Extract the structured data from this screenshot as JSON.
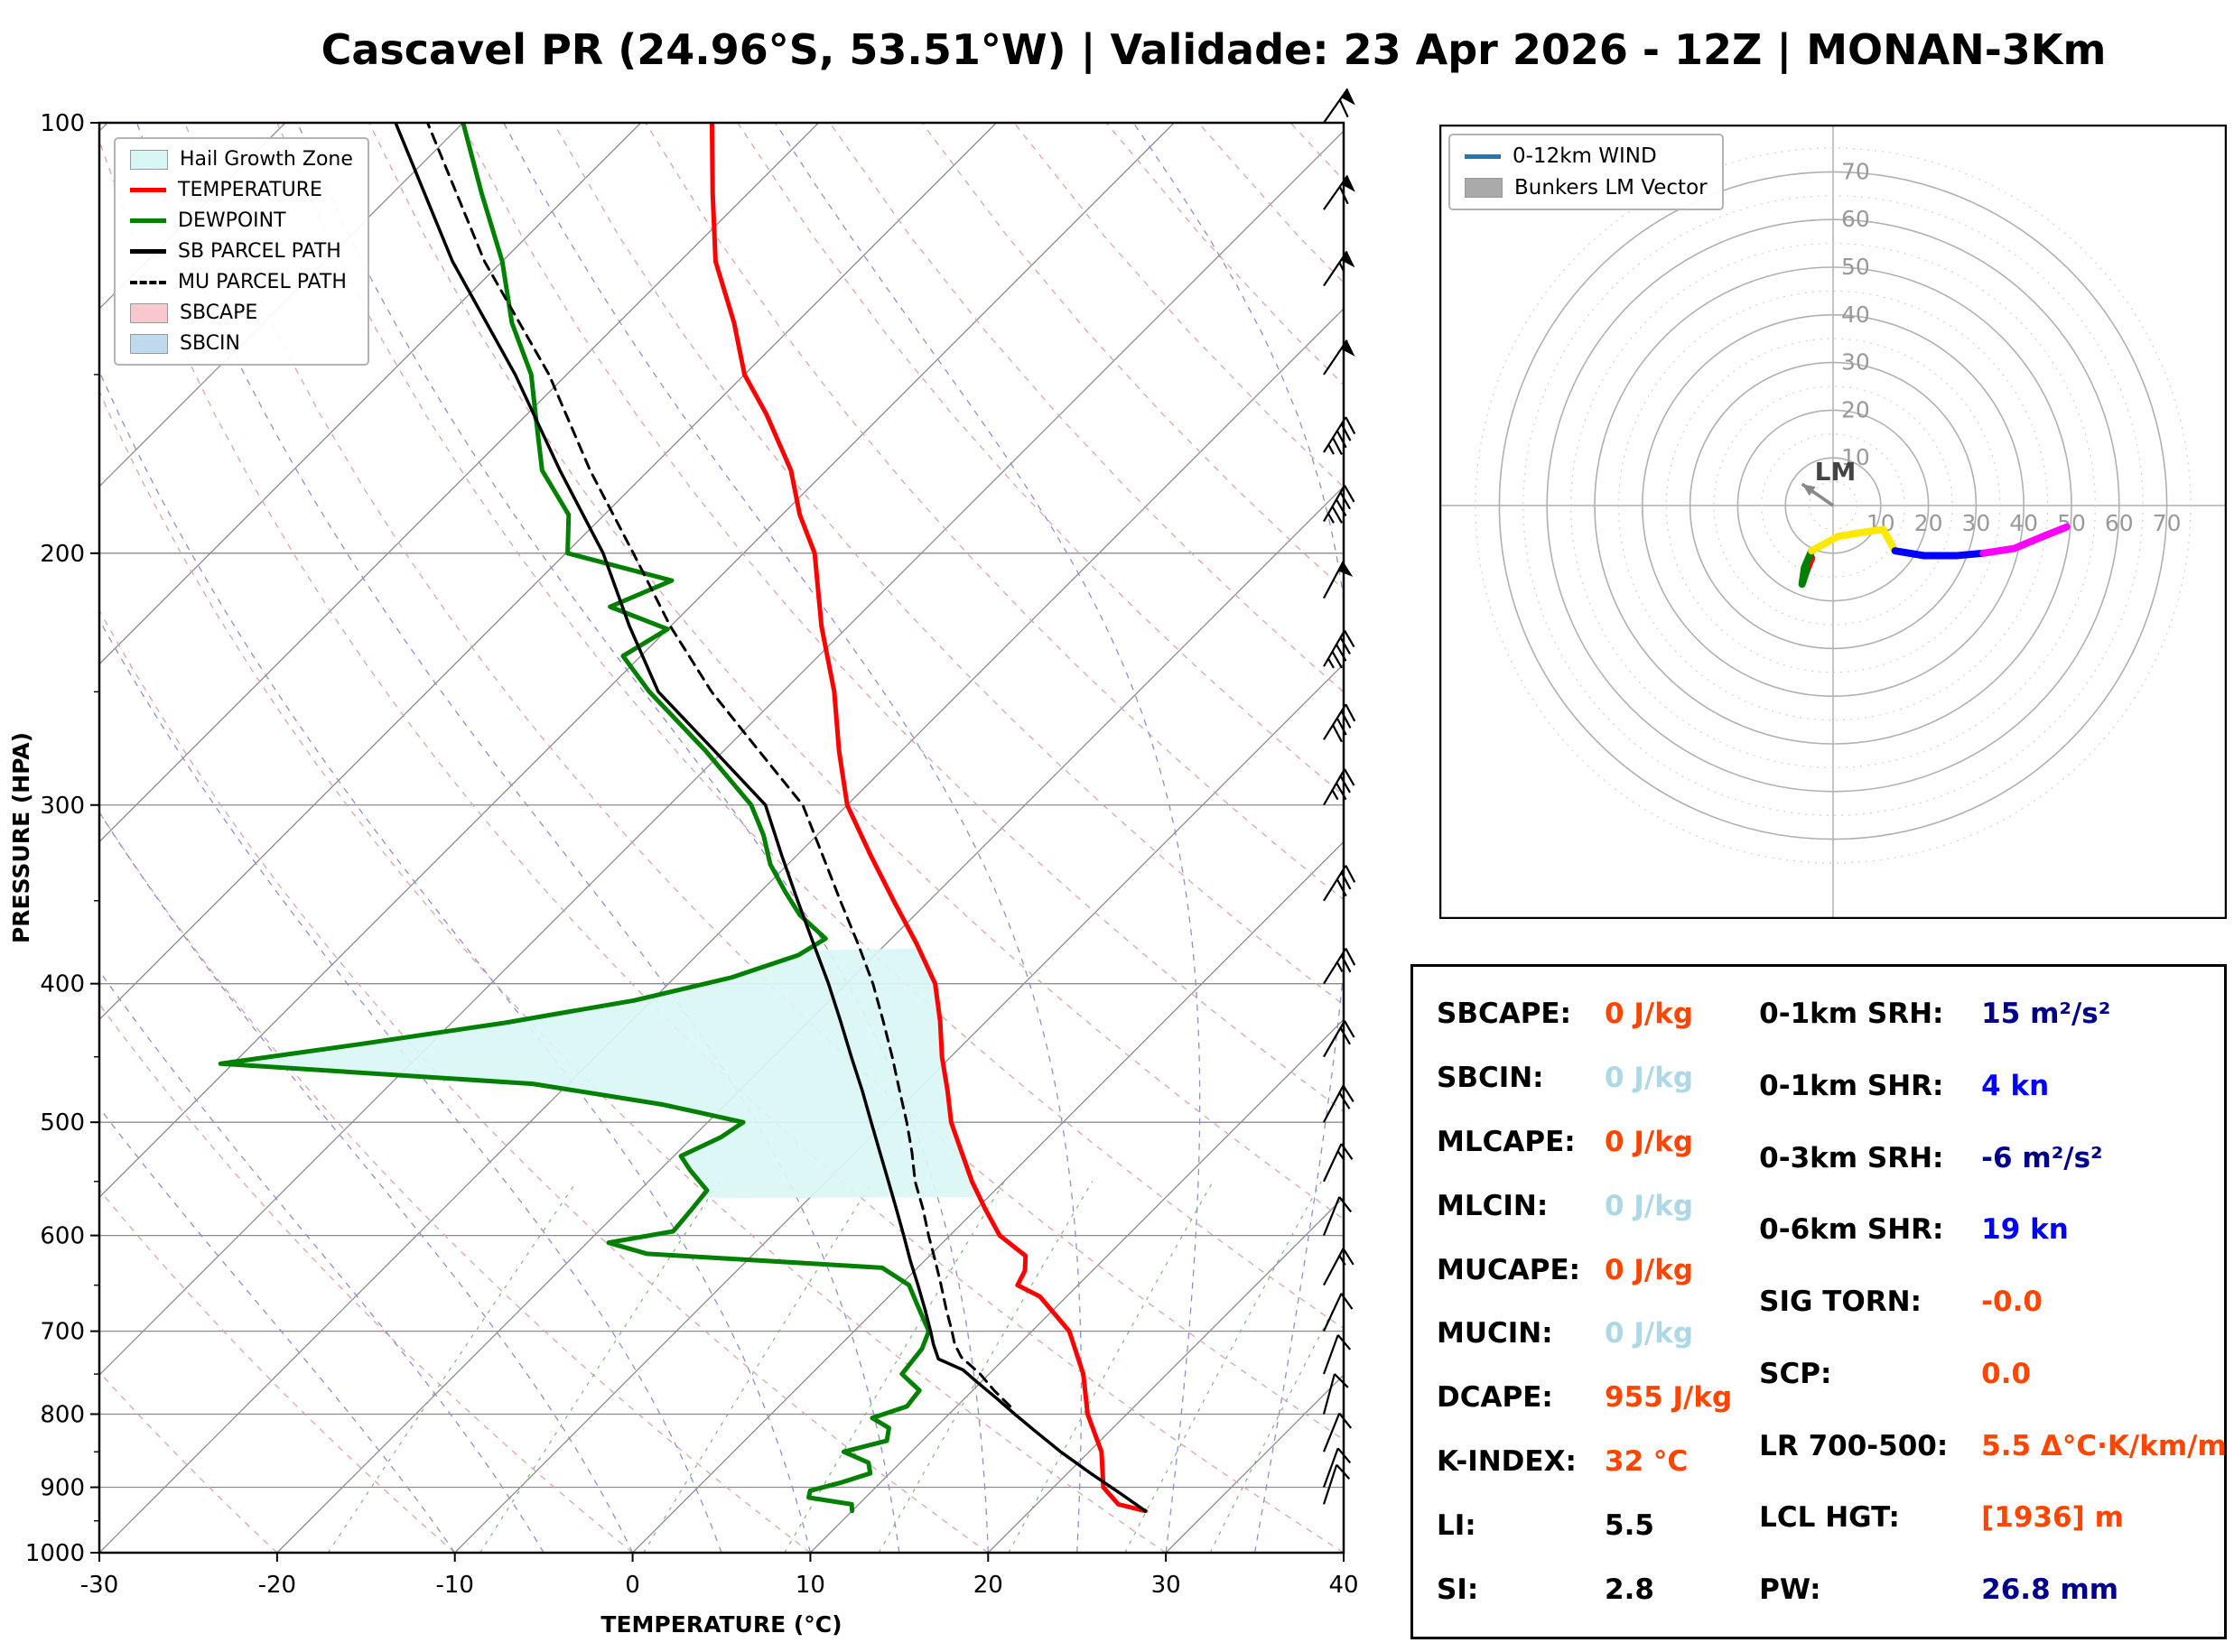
{
  "title": "Cascavel PR (24.96°S, 53.51°W) | Validade: 23 Apr 2026 - 12Z | MONAN-3Km",
  "stats": {
    "left": [
      {
        "label": "SBCAPE:",
        "value": "0 J/kg",
        "color": "#FF4500"
      },
      {
        "label": "SBCIN:",
        "value": "0 J/kg",
        "color": "#ADD8E6"
      },
      {
        "label": "MLCAPE:",
        "value": "0 J/kg",
        "color": "#FF4500"
      },
      {
        "label": "MLCIN:",
        "value": "0 J/kg",
        "color": "#ADD8E6"
      },
      {
        "label": "MUCAPE:",
        "value": "0 J/kg",
        "color": "#FF4500"
      },
      {
        "label": "MUCIN:",
        "value": "0 J/kg",
        "color": "#ADD8E6"
      },
      {
        "label": "DCAPE:",
        "value": "955 J/kg",
        "color": "#FF4500"
      },
      {
        "label": "K-INDEX:",
        "value": "32 °C",
        "color": "#FF4500"
      },
      {
        "label": "LI:",
        "value": "5.5",
        "color": "#000000"
      },
      {
        "label": "SI:",
        "value": "2.8",
        "color": "#000000"
      }
    ],
    "right": [
      {
        "label": "0-1km SRH:",
        "value": "15 m²/s²",
        "color": "#00008B"
      },
      {
        "label": "0-1km SHR:",
        "value": "4 kn",
        "color": "#0000FF"
      },
      {
        "label": "0-3km SRH:",
        "value": "-6 m²/s²",
        "color": "#00008B"
      },
      {
        "label": "0-6km SHR:",
        "value": "19 kn",
        "color": "#0000FF"
      },
      {
        "label": "SIG TORN:",
        "value": "-0.0",
        "color": "#FF4500"
      },
      {
        "label": "SCP:",
        "value": "0.0",
        "color": "#FF4500"
      },
      {
        "label": "LR 700-500:",
        "value": "5.5 Δ°C·K/km/m",
        "color": "#FF4500"
      },
      {
        "label": "LCL HGT:",
        "value": "[1936] m",
        "color": "#FF4500"
      },
      {
        "label": "PW:",
        "value": "26.8 mm",
        "color": "#00008B"
      }
    ]
  },
  "chart_data": [
    {
      "type": "line",
      "title": "Skew-T Log-P Sounding",
      "xlabel": "TEMPERATURE (°C)",
      "ylabel": "PRESSURE (HPA)",
      "xlim": [
        -30,
        40
      ],
      "x_ticks": [
        -30,
        -20,
        -10,
        0,
        10,
        20,
        30,
        40
      ],
      "pressure_ticks": [
        100,
        200,
        300,
        400,
        500,
        600,
        700,
        800,
        900,
        1000
      ],
      "pressure_range": [
        1000,
        100
      ],
      "skew_deg": 45,
      "grid": true,
      "legend_position": "upper left",
      "legend": [
        {
          "label": "Hail Growth Zone",
          "swatch": "patch",
          "color": "#D9F6F6"
        },
        {
          "label": "TEMPERATURE",
          "swatch": "line",
          "color": "#FF0000"
        },
        {
          "label": "DEWPOINT",
          "swatch": "line",
          "color": "#008000"
        },
        {
          "label": "SB PARCEL PATH",
          "swatch": "line",
          "color": "#000000"
        },
        {
          "label": "MU PARCEL PATH",
          "swatch": "dashed",
          "color": "#000000"
        },
        {
          "label": "SBCAPE",
          "swatch": "patch",
          "color": "#F7C8CE"
        },
        {
          "label": "SBCIN",
          "swatch": "patch",
          "color": "#BFD9EE"
        }
      ],
      "hail_growth_zone": {
        "p_top": 378,
        "p_bottom": 565,
        "color": "#D9F6F6"
      },
      "series": [
        {
          "name": "TEMPERATURE",
          "color": "#FF0000",
          "style": "solid",
          "width": 5,
          "points": [
            [
              935,
              26.5
            ],
            [
              925,
              24.6
            ],
            [
              900,
              22.8
            ],
            [
              850,
              20.7
            ],
            [
              800,
              17.8
            ],
            [
              750,
              15.3
            ],
            [
              700,
              12.1
            ],
            [
              662,
              8.5
            ],
            [
              650,
              6.6
            ],
            [
              635,
              6.2
            ],
            [
              620,
              5.4
            ],
            [
              600,
              2.8
            ],
            [
              575,
              0.5
            ],
            [
              550,
              -1.8
            ],
            [
              525,
              -4.0
            ],
            [
              500,
              -6.3
            ],
            [
              475,
              -8.3
            ],
            [
              450,
              -10.5
            ],
            [
              425,
              -12.6
            ],
            [
              400,
              -15.0
            ],
            [
              375,
              -18.3
            ],
            [
              350,
              -22.0
            ],
            [
              325,
              -25.9
            ],
            [
              300,
              -30.0
            ],
            [
              275,
              -33.5
            ],
            [
              250,
              -37.1
            ],
            [
              225,
              -41.5
            ],
            [
              200,
              -46.0
            ],
            [
              188,
              -49.0
            ],
            [
              175,
              -52.0
            ],
            [
              160,
              -56.5
            ],
            [
              150,
              -60.0
            ],
            [
              138,
              -63.5
            ],
            [
              125,
              -68.0
            ],
            [
              112,
              -72.0
            ],
            [
              100,
              -76.0
            ]
          ]
        },
        {
          "name": "DEWPOINT",
          "color": "#008000",
          "style": "solid",
          "width": 5,
          "points": [
            [
              935,
              10.0
            ],
            [
              925,
              9.6
            ],
            [
              915,
              6.8
            ],
            [
              905,
              6.5
            ],
            [
              893,
              7.8
            ],
            [
              880,
              8.9
            ],
            [
              865,
              8.2
            ],
            [
              850,
              6.2
            ],
            [
              835,
              8.0
            ],
            [
              818,
              7.4
            ],
            [
              805,
              5.9
            ],
            [
              790,
              7.2
            ],
            [
              770,
              7.0
            ],
            [
              750,
              5.1
            ],
            [
              720,
              4.8
            ],
            [
              700,
              4.2
            ],
            [
              670,
              2.0
            ],
            [
              650,
              0.5
            ],
            [
              632,
              -2.0
            ],
            [
              618,
              -16.0
            ],
            [
              607,
              -18.8
            ],
            [
              596,
              -15.8
            ],
            [
              575,
              -16.0
            ],
            [
              558,
              -16.2
            ],
            [
              540,
              -18.3
            ],
            [
              528,
              -19.6
            ],
            [
              512,
              -18.4
            ],
            [
              500,
              -18.0
            ],
            [
              486,
              -23.5
            ],
            [
              470,
              -32.0
            ],
            [
              455,
              -50.7
            ],
            [
              441,
              -44.0
            ],
            [
              426,
              -37.0
            ],
            [
              411,
              -31.0
            ],
            [
              396,
              -26.8
            ],
            [
              382,
              -24.3
            ],
            [
              372,
              -23.7
            ],
            [
              358,
              -26.5
            ],
            [
              345,
              -28.6
            ],
            [
              330,
              -31.0
            ],
            [
              315,
              -33.0
            ],
            [
              300,
              -35.4
            ],
            [
              275,
              -41.0
            ],
            [
              250,
              -47.5
            ],
            [
              236,
              -51.0
            ],
            [
              226,
              -50.0
            ],
            [
              218,
              -54.5
            ],
            [
              209,
              -52.5
            ],
            [
              200,
              -59.9
            ],
            [
              188,
              -62.0
            ],
            [
              175,
              -66.0
            ],
            [
              160,
              -69.5
            ],
            [
              150,
              -72.0
            ],
            [
              138,
              -76.0
            ],
            [
              125,
              -80.0
            ],
            [
              112,
              -85.0
            ],
            [
              100,
              -90.0
            ]
          ]
        },
        {
          "name": "SB PARCEL PATH",
          "color": "#000000",
          "style": "solid",
          "width": 3.5,
          "points": [
            [
              935,
              26.5
            ],
            [
              910,
              24.2
            ],
            [
              880,
              21.3
            ],
            [
              850,
              18.4
            ],
            [
              820,
              15.6
            ],
            [
              800,
              13.7
            ],
            [
              780,
              11.8
            ],
            [
              760,
              9.8
            ],
            [
              745,
              8.3
            ],
            [
              732,
              6.3
            ],
            [
              715,
              5.2
            ],
            [
              700,
              4.3
            ],
            [
              675,
              2.7
            ],
            [
              650,
              1.0
            ],
            [
              625,
              -0.8
            ],
            [
              600,
              -2.6
            ],
            [
              575,
              -4.5
            ],
            [
              550,
              -6.5
            ],
            [
              525,
              -8.6
            ],
            [
              500,
              -10.8
            ],
            [
              475,
              -13.1
            ],
            [
              450,
              -15.6
            ],
            [
              425,
              -18.2
            ],
            [
              400,
              -21.0
            ],
            [
              375,
              -24.1
            ],
            [
              350,
              -27.4
            ],
            [
              325,
              -30.9
            ],
            [
              300,
              -34.6
            ],
            [
              275,
              -40.5
            ],
            [
              250,
              -47.0
            ],
            [
              225,
              -52.3
            ],
            [
              200,
              -57.9
            ],
            [
              175,
              -65.0
            ],
            [
              150,
              -72.9
            ],
            [
              125,
              -82.8
            ],
            [
              100,
              -93.8
            ]
          ]
        },
        {
          "name": "MU PARCEL PATH",
          "color": "#000000",
          "style": "dashed",
          "width": 3,
          "points": [
            [
              790,
              13.0
            ],
            [
              770,
              11.2
            ],
            [
              750,
              9.5
            ],
            [
              730,
              7.5
            ],
            [
              715,
              6.4
            ],
            [
              700,
              5.5
            ],
            [
              675,
              3.9
            ],
            [
              650,
              2.3
            ],
            [
              625,
              0.6
            ],
            [
              600,
              -1.2
            ],
            [
              575,
              -3.0
            ],
            [
              550,
              -5.0
            ],
            [
              525,
              -6.8
            ],
            [
              500,
              -8.8
            ],
            [
              475,
              -11.0
            ],
            [
              450,
              -13.3
            ],
            [
              425,
              -15.8
            ],
            [
              400,
              -18.5
            ],
            [
              375,
              -21.6
            ],
            [
              350,
              -25.0
            ],
            [
              325,
              -28.6
            ],
            [
              300,
              -32.5
            ],
            [
              275,
              -38.0
            ],
            [
              250,
              -44.0
            ],
            [
              225,
              -50.0
            ],
            [
              200,
              -56.2
            ],
            [
              175,
              -63.3
            ],
            [
              150,
              -71.0
            ],
            [
              125,
              -81.0
            ],
            [
              100,
              -92.0
            ]
          ]
        }
      ],
      "wind_barbs": [
        {
          "p": 925,
          "kn": 8,
          "dir": 18
        },
        {
          "p": 900,
          "kn": 8,
          "dir": 20
        },
        {
          "p": 850,
          "kn": 10,
          "dir": 22
        },
        {
          "p": 800,
          "kn": 10,
          "dir": 15
        },
        {
          "p": 750,
          "kn": 12,
          "dir": 20
        },
        {
          "p": 700,
          "kn": 12,
          "dir": 25
        },
        {
          "p": 650,
          "kn": 15,
          "dir": 28
        },
        {
          "p": 600,
          "kn": 12,
          "dir": 22
        },
        {
          "p": 550,
          "kn": 15,
          "dir": 25
        },
        {
          "p": 500,
          "kn": 18,
          "dir": 28
        },
        {
          "p": 450,
          "kn": 22,
          "dir": 30
        },
        {
          "p": 400,
          "kn": 26,
          "dir": 32
        },
        {
          "p": 350,
          "kn": 30,
          "dir": 32
        },
        {
          "p": 300,
          "kn": 35,
          "dir": 30
        },
        {
          "p": 270,
          "kn": 38,
          "dir": 32
        },
        {
          "p": 240,
          "kn": 45,
          "dir": 30
        },
        {
          "p": 215,
          "kn": 50,
          "dir": 28
        },
        {
          "p": 190,
          "kn": 45,
          "dir": 30
        },
        {
          "p": 170,
          "kn": 45,
          "dir": 32
        },
        {
          "p": 150,
          "kn": 50,
          "dir": 34
        },
        {
          "p": 130,
          "kn": 55,
          "dir": 34
        },
        {
          "p": 115,
          "kn": 60,
          "dir": 35
        },
        {
          "p": 100,
          "kn": 62,
          "dir": 35
        }
      ]
    },
    {
      "type": "line",
      "title": "Hodograph",
      "units": "kn",
      "rings": [
        10,
        20,
        30,
        40,
        50,
        60,
        70
      ],
      "legend": [
        {
          "label": "0-12km WIND",
          "swatch": "line",
          "color": "#1F77B4"
        },
        {
          "label": "Bunkers LM Vector",
          "swatch": "patch",
          "color": "#AAAAAA"
        }
      ],
      "trace": [
        {
          "color": "#FF0000",
          "points": [
            [
              -4.5,
              -11
            ],
            [
              -5.5,
              -13.5
            ]
          ]
        },
        {
          "color": "#008000",
          "points": [
            [
              -5.5,
              -13.5
            ],
            [
              -6.5,
              -16.5
            ],
            [
              -6,
              -13
            ],
            [
              -4.5,
              -9.5
            ]
          ]
        },
        {
          "color": "#FFE800",
          "points": [
            [
              -4.5,
              -9.5
            ],
            [
              1,
              -6.5
            ],
            [
              7,
              -5.5
            ],
            [
              10.5,
              -5
            ],
            [
              13,
              -9.5
            ]
          ]
        },
        {
          "color": "#0000FF",
          "points": [
            [
              13,
              -9.5
            ],
            [
              19,
              -10.5
            ],
            [
              26,
              -10.5
            ],
            [
              31.5,
              -10
            ]
          ]
        },
        {
          "color": "#FF00FF",
          "points": [
            [
              31.5,
              -10
            ],
            [
              38,
              -9
            ],
            [
              44,
              -6.5
            ],
            [
              49,
              -4.5
            ]
          ]
        }
      ],
      "lm_marker": {
        "label": "LM",
        "u": -6.5,
        "v": 4.5
      }
    }
  ]
}
